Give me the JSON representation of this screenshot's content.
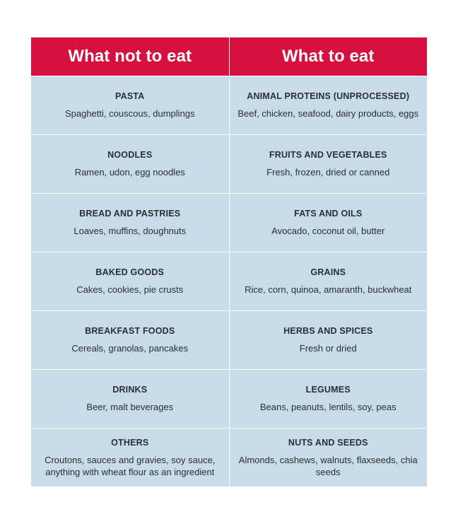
{
  "header": {
    "left": "What not to eat",
    "right": "What to eat"
  },
  "rows": [
    {
      "left": {
        "category": "PASTA",
        "items": "Spaghetti, couscous, dumplings"
      },
      "right": {
        "category": "ANIMAL PROTEINS (UNPROCESSED)",
        "items": "Beef, chicken, seafood, dairy products, eggs"
      }
    },
    {
      "left": {
        "category": "NOODLES",
        "items": "Ramen, udon, egg noodles"
      },
      "right": {
        "category": "FRUITS AND VEGETABLES",
        "items": "Fresh, frozen, dried or canned"
      }
    },
    {
      "left": {
        "category": "BREAD AND PASTRIES",
        "items": "Loaves, muffins, doughnuts"
      },
      "right": {
        "category": "FATS AND OILS",
        "items": "Avocado, coconut oil, butter"
      }
    },
    {
      "left": {
        "category": "BAKED GOODS",
        "items": "Cakes, cookies, pie crusts"
      },
      "right": {
        "category": "GRAINS",
        "items": "Rice, corn, quinoa, amaranth, buckwheat"
      }
    },
    {
      "left": {
        "category": "BREAKFAST FOODS",
        "items": "Cereals, granolas, pancakes"
      },
      "right": {
        "category": "HERBS AND SPICES",
        "items": "Fresh or dried"
      }
    },
    {
      "left": {
        "category": "DRINKS",
        "items": "Beer, malt beverages"
      },
      "right": {
        "category": "LEGUMES",
        "items": "Beans, peanuts, lentils, soy, peas"
      }
    },
    {
      "left": {
        "category": "OTHERS",
        "items": "Croutons, sauces and gravies, soy sauce, anything with wheat flour as an ingredient"
      },
      "right": {
        "category": "NUTS AND SEEDS",
        "items": "Almonds, cashews, walnuts, flaxseeds, chia seeds"
      }
    }
  ],
  "colors": {
    "header_bg": "#d5103f",
    "row_bg": "#c7dce8",
    "text": "#2b2f33"
  }
}
